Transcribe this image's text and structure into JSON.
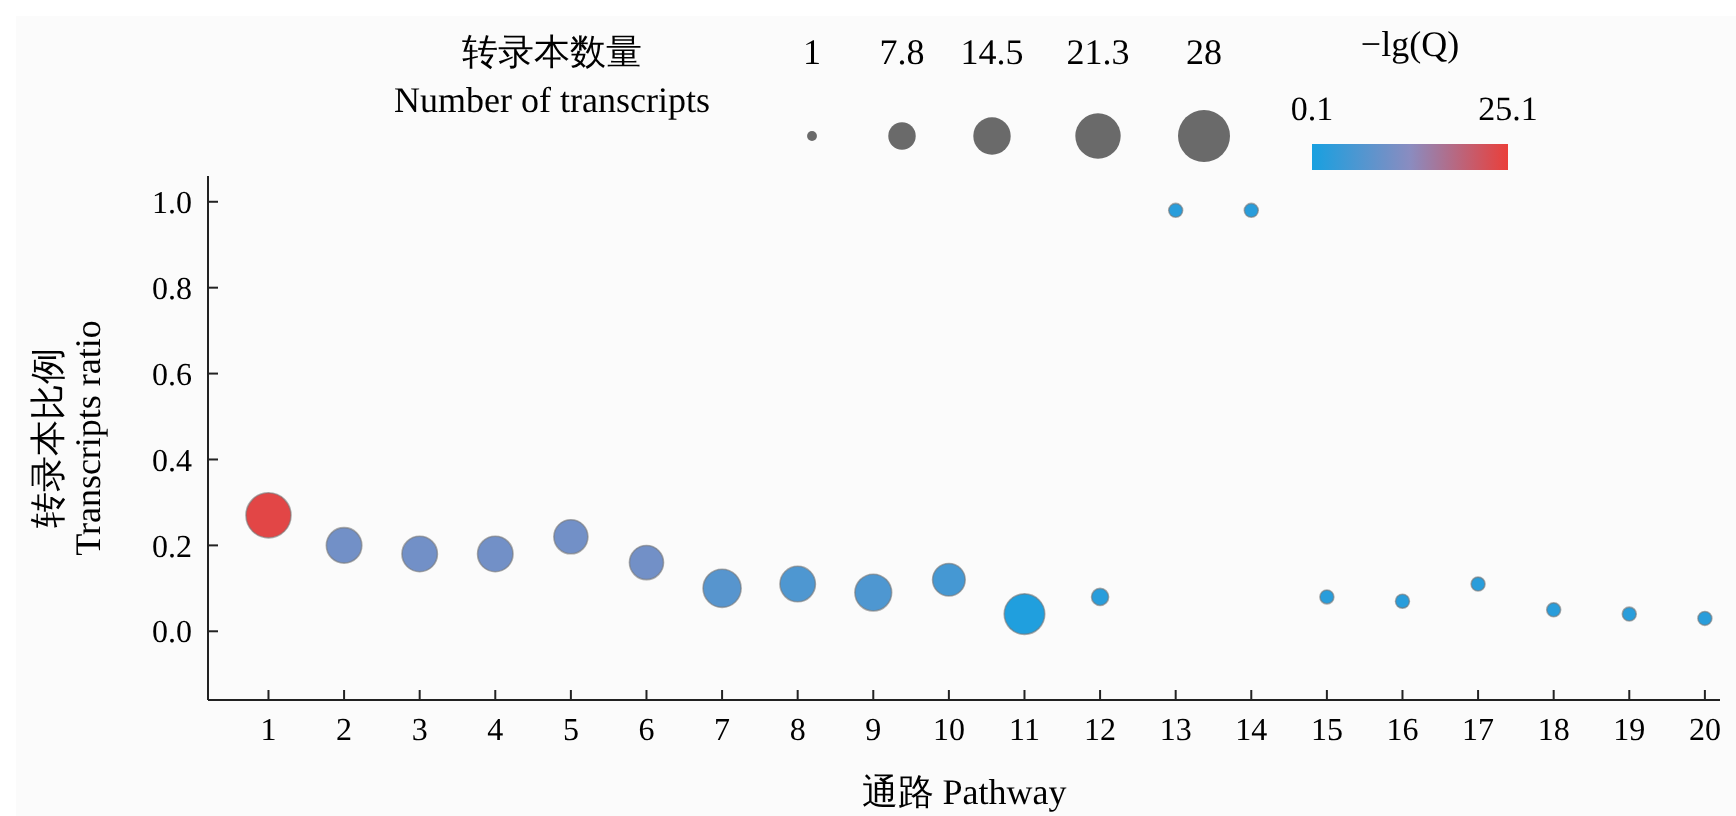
{
  "chart_data": {
    "type": "bubble",
    "xlabel": "通路 Pathway",
    "ylabel": "转录本比例\nTranscripts ratio",
    "legend_title": "转录本数量\nNumber of transcripts",
    "clabel": "−lg(Q)",
    "x": [
      1,
      2,
      3,
      4,
      5,
      6,
      7,
      8,
      9,
      10,
      11,
      12,
      13,
      14,
      15,
      16,
      17,
      18,
      19,
      20
    ],
    "values": [
      0.27,
      0.2,
      0.18,
      0.18,
      0.22,
      0.16,
      0.1,
      0.11,
      0.09,
      0.12,
      0.04,
      0.08,
      0.98,
      0.98,
      0.08,
      0.07,
      0.11,
      0.05,
      0.04,
      0.03
    ],
    "sizes": [
      21,
      13,
      13,
      13,
      12,
      12,
      15,
      13,
      14,
      11,
      17,
      3,
      2,
      2,
      2,
      2,
      2,
      2,
      2,
      2
    ],
    "cvalues": [
      24,
      10,
      10,
      10,
      10,
      10,
      7,
      6,
      6,
      5,
      1,
      2,
      2,
      2,
      2,
      2,
      2,
      2,
      2,
      2
    ],
    "size_legend": [
      1,
      7.8,
      14.5,
      21.3,
      28
    ],
    "clim": [
      0.1,
      25.1
    ],
    "cticks": [
      0.1,
      25.1
    ],
    "xlim": [
      0.2,
      20.2
    ],
    "xticks": [
      1,
      2,
      3,
      4,
      5,
      6,
      7,
      8,
      9,
      10,
      11,
      12,
      13,
      14,
      15,
      16,
      17,
      18,
      19,
      20
    ],
    "ylim": [
      -0.16,
      1.06
    ],
    "yticks": [
      {
        "value": 0,
        "label": "0.0"
      },
      {
        "value": 0.2,
        "label": "0.2"
      },
      {
        "value": 0.4,
        "label": "0.4"
      },
      {
        "value": 0.6,
        "label": "0.6"
      },
      {
        "value": 0.8,
        "label": "0.8"
      },
      {
        "value": 1,
        "label": "1.0"
      }
    ],
    "grid": false
  }
}
